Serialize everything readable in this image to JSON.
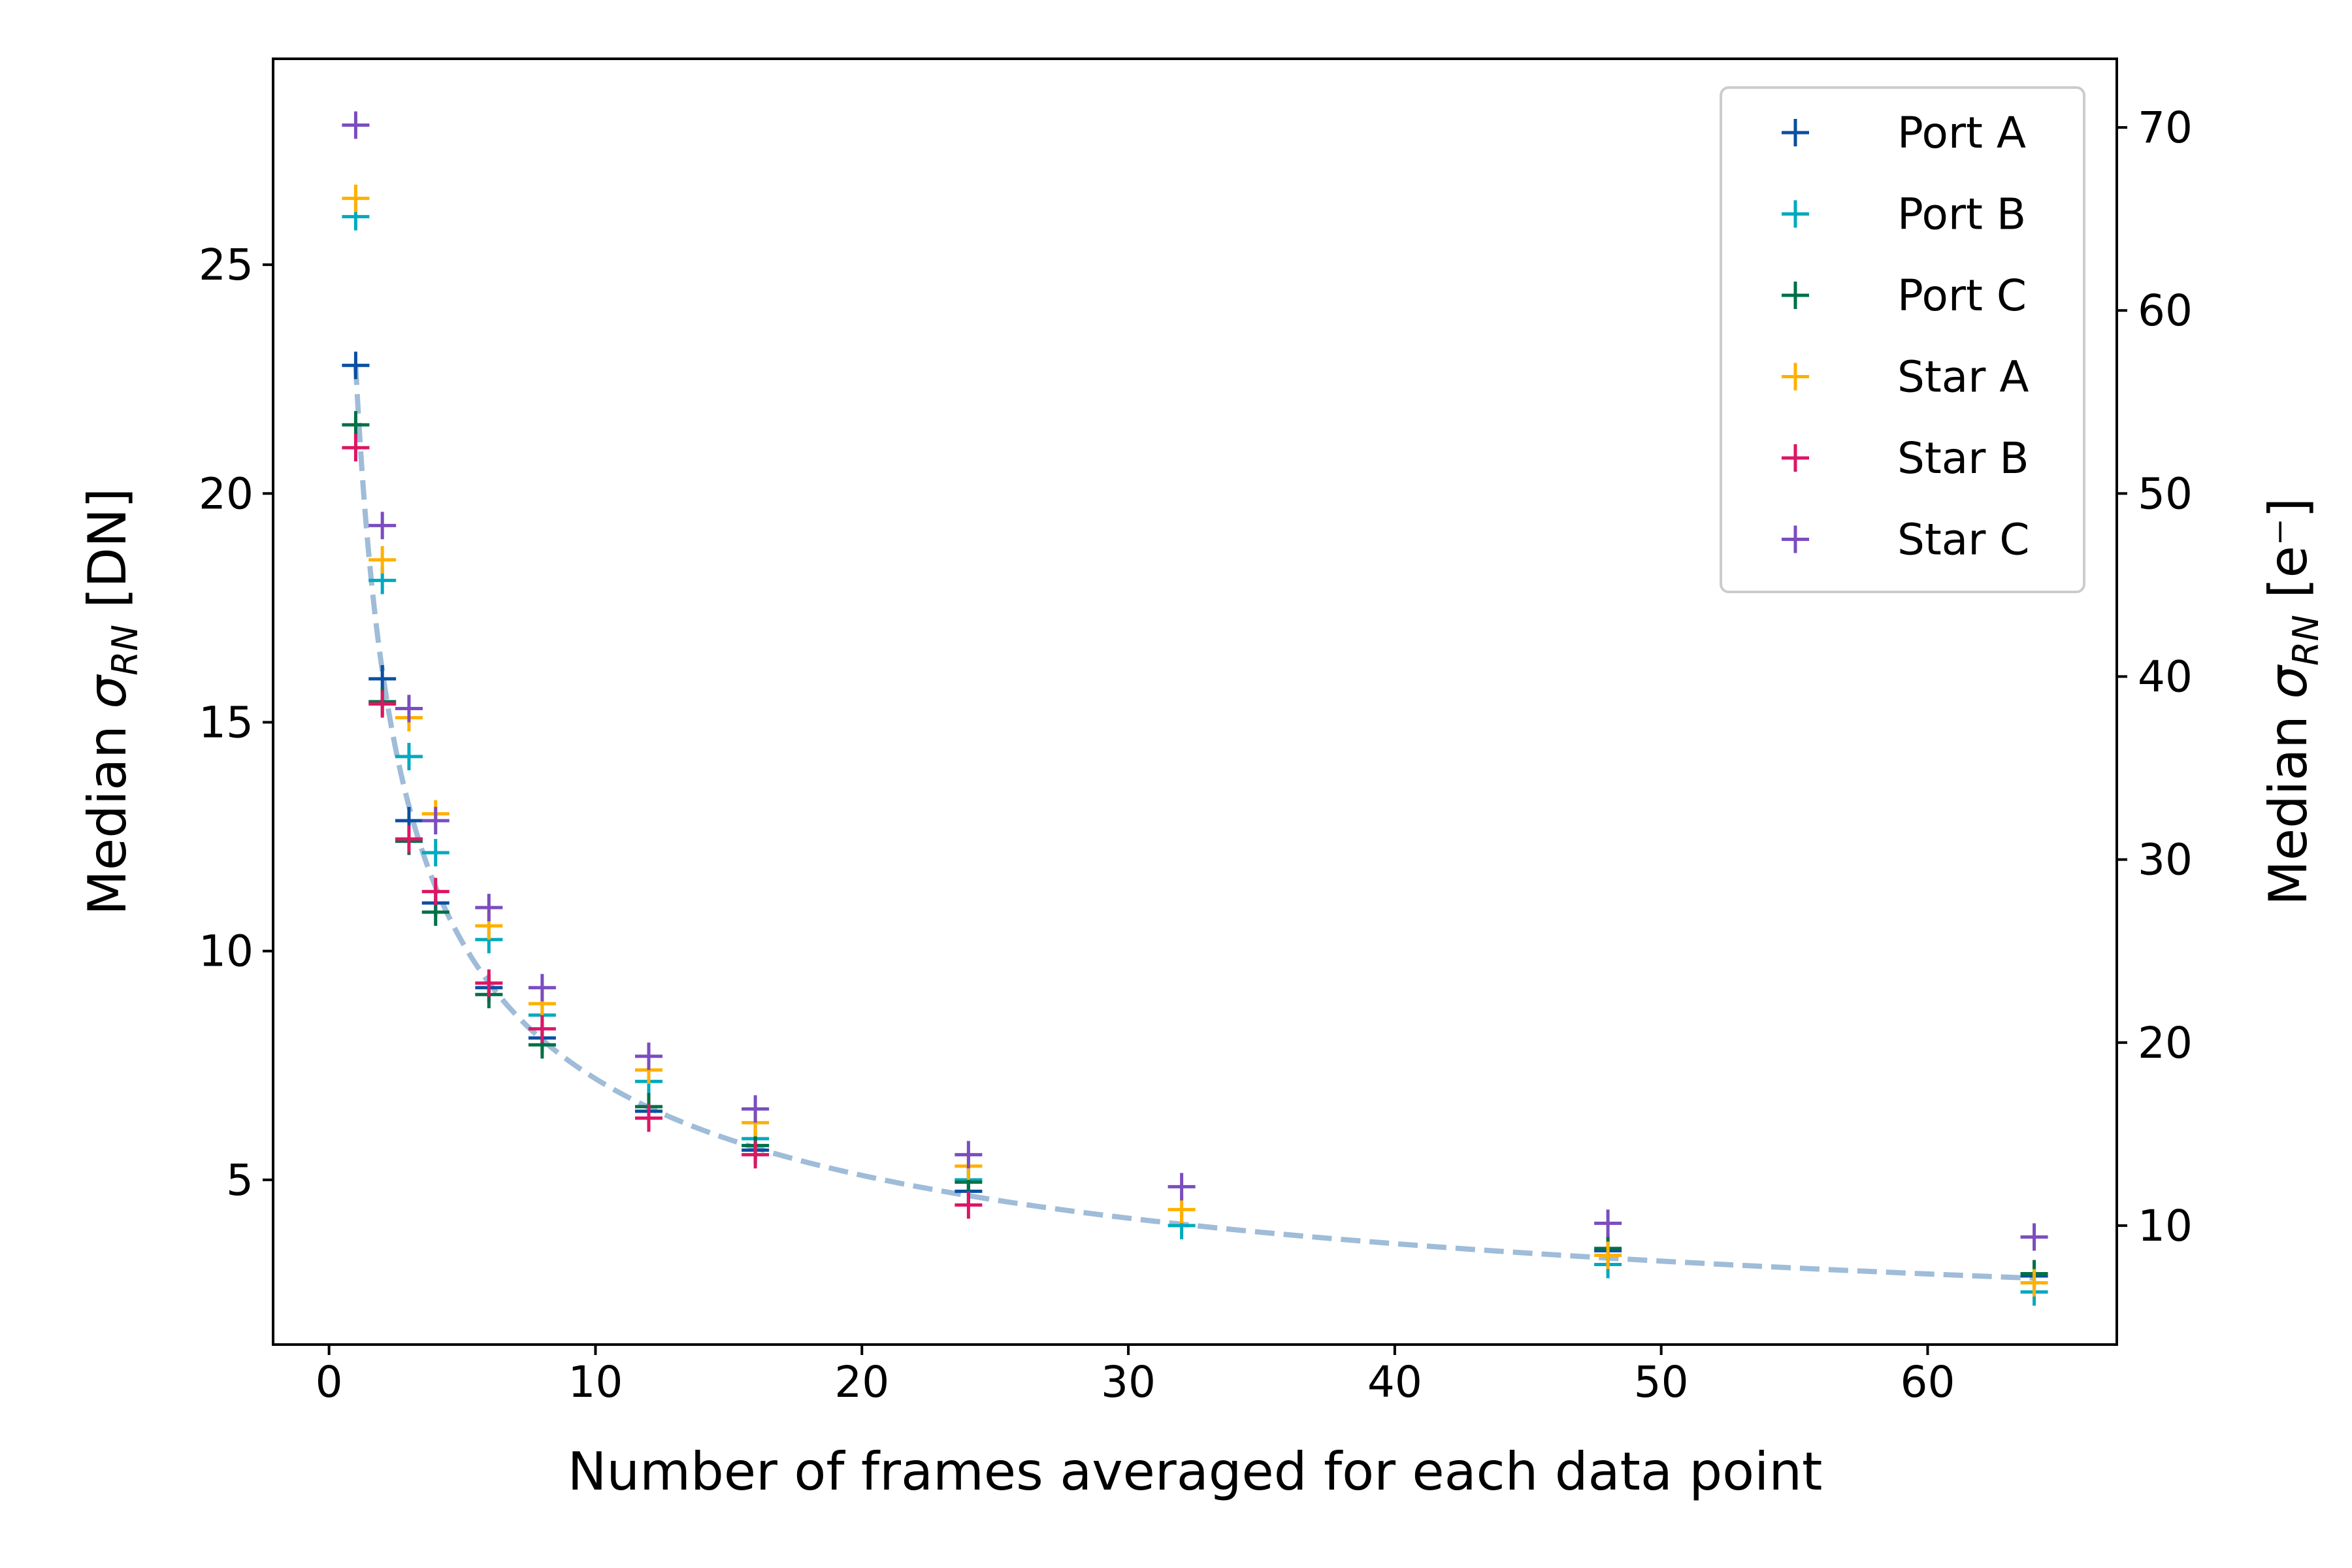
{
  "chart_data": {
    "type": "scatter",
    "title": "",
    "xlabel": "Number of frames averaged for each data point",
    "ylabel_left": {
      "prefix": "Median ",
      "symbol": "σ",
      "subscript": "RN",
      "unit": " [DN]"
    },
    "ylabel_right": {
      "prefix": "Median ",
      "symbol": "σ",
      "subscript": "RN",
      "unit": " [e⁻]"
    },
    "xlim": [
      -2.1,
      67.1
    ],
    "ylim_left": [
      1.4,
      29.5
    ],
    "ylim_right": [
      3.5,
      73.75
    ],
    "dn_to_electron_factor": 2.5,
    "xticks": [
      0,
      10,
      20,
      30,
      40,
      50,
      60
    ],
    "yticks_left": [
      5,
      10,
      15,
      20,
      25
    ],
    "yticks_right": [
      10,
      20,
      30,
      40,
      50,
      60,
      70
    ],
    "legend_position": "top-right",
    "x": [
      1,
      2,
      3,
      4,
      6,
      8,
      12,
      16,
      24,
      32,
      48,
      64
    ],
    "series": [
      {
        "name": "Port A",
        "color": "#0a4fa1",
        "marker": "plus",
        "values": [
          22.8,
          15.95,
          12.85,
          11.05,
          9.2,
          8.1,
          6.5,
          5.65,
          4.75,
          null,
          3.45,
          2.9
        ]
      },
      {
        "name": "Port B",
        "color": "#00a9be",
        "marker": "plus",
        "values": [
          26.05,
          18.1,
          14.25,
          12.15,
          10.25,
          8.6,
          7.15,
          5.9,
          5.0,
          4.0,
          3.15,
          2.55
        ]
      },
      {
        "name": "Port C",
        "color": "#007045",
        "marker": "plus",
        "values": [
          21.5,
          15.45,
          12.4,
          10.85,
          9.05,
          7.95,
          6.6,
          5.75,
          4.95,
          null,
          3.5,
          2.95
        ]
      },
      {
        "name": "Star A",
        "color": "#ffb000",
        "marker": "plus",
        "values": [
          26.45,
          18.55,
          15.1,
          13.0,
          10.55,
          8.85,
          7.4,
          6.25,
          5.3,
          4.35,
          3.35,
          2.75
        ]
      },
      {
        "name": "Star B",
        "color": "#dc1665",
        "marker": "plus",
        "values": [
          21.0,
          15.4,
          12.45,
          11.3,
          9.3,
          8.3,
          6.35,
          5.55,
          4.45,
          null,
          null,
          null
        ]
      },
      {
        "name": "Star C",
        "color": "#7b4dbf",
        "marker": "plus",
        "values": [
          28.05,
          19.3,
          15.3,
          12.85,
          10.95,
          9.2,
          7.7,
          6.55,
          5.55,
          4.85,
          4.05,
          3.75
        ]
      }
    ],
    "fit_curve": {
      "style": "dashed",
      "color": "#9fbcd9",
      "formula": "a / sqrt(x)",
      "a": 22.8,
      "x_range": [
        1,
        64
      ]
    }
  }
}
